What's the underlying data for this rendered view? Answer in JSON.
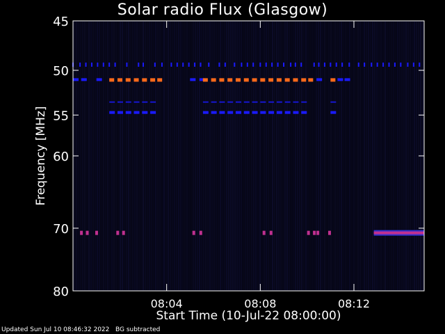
{
  "chart_data": {
    "type": "heatmap",
    "title": "Solar radio Flux (Glasgow)",
    "xlabel": "Start Time (10-Jul-22 08:00:00)",
    "ylabel": "Frequency [MHz]",
    "x_ticks": [
      {
        "minute": 4,
        "label": "08:04"
      },
      {
        "minute": 8,
        "label": "08:08"
      },
      {
        "minute": 12,
        "label": "08:12"
      }
    ],
    "y_ticks": [
      45,
      50,
      55,
      60,
      70,
      80
    ],
    "ylim": [
      45,
      80
    ],
    "y_scale": "log",
    "xlim_minutes": [
      0,
      15
    ],
    "background_color": "#060616",
    "features": [
      {
        "freq_mhz": 49.4,
        "kind": "blue-ticks",
        "color": "#1a1aff",
        "minutes": [
          0.0,
          0.3,
          0.55,
          0.8,
          1.05,
          1.3,
          1.55,
          1.8,
          2.3,
          2.8,
          3.0,
          3.5,
          3.8,
          4.2,
          4.45,
          4.7,
          4.95,
          5.2,
          5.45,
          5.8,
          6.25,
          6.5,
          6.9,
          7.2,
          7.45,
          7.7,
          8.0,
          8.25,
          8.5,
          8.75,
          9.0,
          9.3,
          9.5,
          9.75,
          10.3,
          10.5,
          10.75,
          11.0,
          11.25,
          11.5,
          11.8,
          12.2,
          12.45,
          12.75,
          13.0,
          13.25,
          13.5,
          13.75,
          14.0,
          14.3,
          14.55,
          14.8
        ]
      },
      {
        "freq_mhz": 51.0,
        "kind": "blue-dashes",
        "color": "#1a1aff",
        "minutes": [
          0.0,
          0.35,
          1.0,
          5.0,
          5.4,
          10.4,
          11.3,
          11.6
        ]
      },
      {
        "freq_mhz": 51.0,
        "kind": "orange-dashes",
        "color": "#ff6a1a",
        "minutes": [
          1.55,
          1.9,
          2.25,
          2.6,
          2.95,
          3.3,
          3.6,
          5.55,
          5.9,
          6.25,
          6.6,
          6.95,
          7.3,
          7.65,
          8.0,
          8.35,
          8.7,
          9.05,
          9.4,
          9.75,
          10.05,
          11.0
        ]
      },
      {
        "freq_mhz": 53.5,
        "kind": "thin-blue-dashes",
        "color": "#1a1aff",
        "minutes": [
          1.55,
          1.9,
          2.25,
          2.6,
          2.95,
          3.3,
          5.55,
          5.9,
          6.25,
          6.6,
          6.95,
          7.3,
          7.65,
          8.0,
          8.35,
          8.7,
          9.05,
          9.4,
          9.75,
          11.0
        ]
      },
      {
        "freq_mhz": 54.7,
        "kind": "blue-dashes",
        "color": "#1a1aff",
        "minutes": [
          1.55,
          1.9,
          2.25,
          2.6,
          2.95,
          3.3,
          5.55,
          5.9,
          6.25,
          6.6,
          6.95,
          7.3,
          7.65,
          8.0,
          8.35,
          8.7,
          9.05,
          9.4,
          9.75,
          11.0
        ]
      },
      {
        "freq_mhz": 70.7,
        "kind": "magenta-bursts",
        "color": "#c03090",
        "minutes": [
          0.3,
          0.55,
          0.95,
          1.85,
          2.1,
          5.1,
          5.4,
          8.1,
          8.4,
          10.0,
          10.25,
          10.4,
          10.9
        ]
      },
      {
        "freq_mhz": 70.7,
        "kind": "magenta-band",
        "color": "#c03090",
        "start_minute": 12.85,
        "end_minute": 15.0
      }
    ]
  },
  "footer": {
    "updated": "Updated Sun Jul 10 08:46:32 2022",
    "note": "BG subtracted"
  }
}
